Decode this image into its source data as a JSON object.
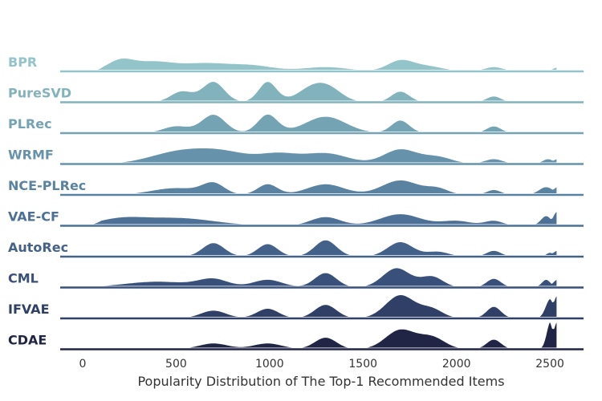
{
  "chart_data": {
    "type": "ridgeline",
    "xlabel": "Popularity Distribution of The Top-1 Recommended Items",
    "xlim": [
      -120,
      2680
    ],
    "xticks": [
      0,
      500,
      1000,
      1500,
      2000,
      2500
    ],
    "series": [
      {
        "name": "BPR",
        "color": "#93c4c9",
        "start": 30,
        "end": 2540,
        "peaks": [
          [
            200,
            0.52,
            70
          ],
          [
            380,
            0.48,
            110
          ],
          [
            650,
            0.38,
            120
          ],
          [
            900,
            0.3,
            120
          ],
          [
            1300,
            0.22,
            120
          ],
          [
            1700,
            0.55,
            70
          ],
          [
            1850,
            0.25,
            80
          ],
          [
            2200,
            0.22,
            50
          ]
        ],
        "edge": 0.2
      },
      {
        "name": "PureSVD",
        "color": "#82b3bd",
        "start": 30,
        "end": 2540,
        "peaks": [
          [
            530,
            0.55,
            60
          ],
          [
            700,
            1.05,
            60
          ],
          [
            990,
            1.05,
            50
          ],
          [
            1230,
            0.75,
            80
          ],
          [
            1330,
            0.5,
            70
          ],
          [
            1700,
            0.55,
            50
          ],
          [
            2200,
            0.3,
            40
          ]
        ],
        "edge": 0.05
      },
      {
        "name": "PLRec",
        "color": "#74a3b4",
        "start": 30,
        "end": 2540,
        "peaks": [
          [
            500,
            0.35,
            70
          ],
          [
            700,
            0.95,
            65
          ],
          [
            990,
            0.95,
            55
          ],
          [
            1300,
            0.85,
            110
          ],
          [
            1700,
            0.65,
            50
          ],
          [
            2200,
            0.35,
            40
          ]
        ],
        "edge": 0.05
      },
      {
        "name": "WRMF",
        "color": "#6693ab",
        "start": 80,
        "end": 2540,
        "peaks": [
          [
            500,
            0.55,
            150
          ],
          [
            750,
            0.6,
            150
          ],
          [
            1050,
            0.45,
            100
          ],
          [
            1300,
            0.55,
            120
          ],
          [
            1700,
            0.75,
            90
          ],
          [
            1900,
            0.35,
            80
          ],
          [
            2200,
            0.25,
            50
          ],
          [
            2490,
            0.25,
            30
          ]
        ],
        "edge": 0.25
      },
      {
        "name": "NCE-PLRec",
        "color": "#5a82a1",
        "start": 30,
        "end": 2540,
        "peaks": [
          [
            500,
            0.35,
            130
          ],
          [
            700,
            0.55,
            60
          ],
          [
            990,
            0.55,
            55
          ],
          [
            1300,
            0.55,
            100
          ],
          [
            1700,
            0.75,
            100
          ],
          [
            1900,
            0.3,
            60
          ],
          [
            2200,
            0.25,
            40
          ],
          [
            2480,
            0.4,
            40
          ]
        ],
        "edge": 0.4
      },
      {
        "name": "VAE-CF",
        "color": "#4d7196",
        "start": 20,
        "end": 2540,
        "peaks": [
          [
            200,
            0.3,
            120
          ],
          [
            500,
            0.4,
            200
          ],
          [
            1300,
            0.45,
            80
          ],
          [
            1700,
            0.6,
            110
          ],
          [
            2000,
            0.25,
            80
          ],
          [
            2200,
            0.25,
            50
          ],
          [
            2480,
            0.5,
            30
          ]
        ],
        "edge": 0.75
      },
      {
        "name": "AutoRec",
        "color": "#446289",
        "start": 30,
        "end": 2540,
        "peaks": [
          [
            700,
            0.7,
            60
          ],
          [
            990,
            0.65,
            55
          ],
          [
            1300,
            0.85,
            60
          ],
          [
            1700,
            0.75,
            70
          ],
          [
            1900,
            0.25,
            60
          ],
          [
            2200,
            0.3,
            40
          ],
          [
            2500,
            0.2,
            20
          ]
        ],
        "edge": 0.3
      },
      {
        "name": "CML",
        "color": "#39517a",
        "start": 30,
        "end": 2540,
        "peaks": [
          [
            400,
            0.3,
            180
          ],
          [
            700,
            0.4,
            80
          ],
          [
            990,
            0.4,
            80
          ],
          [
            1300,
            0.75,
            60
          ],
          [
            1680,
            1.0,
            75
          ],
          [
            1870,
            0.55,
            60
          ],
          [
            2200,
            0.45,
            40
          ],
          [
            2480,
            0.4,
            25
          ]
        ],
        "edge": 0.4
      },
      {
        "name": "IFVAE",
        "color": "#2f3f66",
        "start": 30,
        "end": 2540,
        "peaks": [
          [
            700,
            0.4,
            70
          ],
          [
            990,
            0.5,
            60
          ],
          [
            1300,
            0.7,
            60
          ],
          [
            1700,
            1.2,
            80
          ],
          [
            1870,
            0.45,
            60
          ],
          [
            2200,
            0.6,
            40
          ],
          [
            2500,
            1.0,
            25
          ]
        ],
        "edge": 1.2
      },
      {
        "name": "CDAE",
        "color": "#202545",
        "start": 30,
        "end": 2540,
        "peaks": [
          [
            700,
            0.3,
            80
          ],
          [
            990,
            0.3,
            80
          ],
          [
            1300,
            0.6,
            60
          ],
          [
            1700,
            1.0,
            80
          ],
          [
            1870,
            0.6,
            70
          ],
          [
            2200,
            0.5,
            40
          ],
          [
            2500,
            1.4,
            20
          ]
        ],
        "edge": 1.45
      }
    ]
  }
}
